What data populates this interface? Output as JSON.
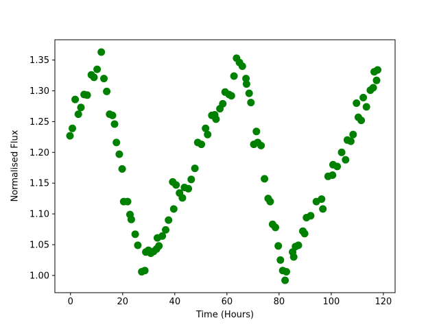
{
  "chart_data": {
    "type": "scatter",
    "title": "",
    "xlabel": "Time (Hours)",
    "ylabel": "Normalised Flux",
    "legend": null,
    "grid": false,
    "marker_color": "#008000",
    "axis_color": "#000000",
    "background_color": "#ffffff",
    "xlim": [
      -6.0,
      124.5
    ],
    "ylim": [
      0.972,
      1.383
    ],
    "x_ticks": [
      0,
      20,
      40,
      60,
      80,
      100,
      120
    ],
    "x_tick_labels": [
      "0",
      "20",
      "40",
      "60",
      "80",
      "100",
      "120"
    ],
    "y_ticks": [
      1.0,
      1.05,
      1.1,
      1.15,
      1.2,
      1.25,
      1.3,
      1.35
    ],
    "y_tick_labels": [
      "1.00",
      "1.05",
      "1.10",
      "1.15",
      "1.20",
      "1.25",
      "1.30",
      "1.35"
    ],
    "points": [
      [
        -0.2,
        1.227
      ],
      [
        0.7,
        1.239
      ],
      [
        1.8,
        1.286
      ],
      [
        3.0,
        1.262
      ],
      [
        4.0,
        1.273
      ],
      [
        5.2,
        1.294
      ],
      [
        6.4,
        1.293
      ],
      [
        8.0,
        1.326
      ],
      [
        9.0,
        1.322
      ],
      [
        10.2,
        1.335
      ],
      [
        11.8,
        1.363
      ],
      [
        12.8,
        1.32
      ],
      [
        13.9,
        1.299
      ],
      [
        15.0,
        1.262
      ],
      [
        16.1,
        1.26
      ],
      [
        16.9,
        1.246
      ],
      [
        17.6,
        1.216
      ],
      [
        18.7,
        1.197
      ],
      [
        19.8,
        1.173
      ],
      [
        20.4,
        1.12
      ],
      [
        21.9,
        1.12
      ],
      [
        22.8,
        1.099
      ],
      [
        23.3,
        1.091
      ],
      [
        24.8,
        1.067
      ],
      [
        25.8,
        1.049
      ],
      [
        27.3,
        1.006
      ],
      [
        28.5,
        1.008
      ],
      [
        28.9,
        1.038
      ],
      [
        29.9,
        1.041
      ],
      [
        30.8,
        1.036
      ],
      [
        31.9,
        1.039
      ],
      [
        33.0,
        1.043
      ],
      [
        33.9,
        1.048
      ],
      [
        33.3,
        1.061
      ],
      [
        35.2,
        1.064
      ],
      [
        36.5,
        1.074
      ],
      [
        37.6,
        1.09
      ],
      [
        39.6,
        1.108
      ],
      [
        39.2,
        1.152
      ],
      [
        40.5,
        1.147
      ],
      [
        41.8,
        1.134
      ],
      [
        42.9,
        1.126
      ],
      [
        43.7,
        1.143
      ],
      [
        45.2,
        1.141
      ],
      [
        46.3,
        1.156
      ],
      [
        47.7,
        1.174
      ],
      [
        48.8,
        1.216
      ],
      [
        50.2,
        1.213
      ],
      [
        51.8,
        1.239
      ],
      [
        52.6,
        1.229
      ],
      [
        54.2,
        1.26
      ],
      [
        55.3,
        1.261
      ],
      [
        55.8,
        1.254
      ],
      [
        57.3,
        1.271
      ],
      [
        58.4,
        1.279
      ],
      [
        59.3,
        1.298
      ],
      [
        60.8,
        1.294
      ],
      [
        61.7,
        1.292
      ],
      [
        62.7,
        1.324
      ],
      [
        63.7,
        1.353
      ],
      [
        64.8,
        1.346
      ],
      [
        65.9,
        1.34
      ],
      [
        67.3,
        1.32
      ],
      [
        67.5,
        1.311
      ],
      [
        68.5,
        1.296
      ],
      [
        69.2,
        1.281
      ],
      [
        70.3,
        1.213
      ],
      [
        71.3,
        1.234
      ],
      [
        71.8,
        1.216
      ],
      [
        73.1,
        1.211
      ],
      [
        74.4,
        1.157
      ],
      [
        75.8,
        1.125
      ],
      [
        76.6,
        1.12
      ],
      [
        77.5,
        1.083
      ],
      [
        78.6,
        1.078
      ],
      [
        79.7,
        1.048
      ],
      [
        80.5,
        1.025
      ],
      [
        81.4,
        1.008
      ],
      [
        82.3,
        0.992
      ],
      [
        82.8,
        1.006
      ],
      [
        85.2,
        1.038
      ],
      [
        85.6,
        1.03
      ],
      [
        86.3,
        1.047
      ],
      [
        87.4,
        1.049
      ],
      [
        89.1,
        1.072
      ],
      [
        89.8,
        1.068
      ],
      [
        90.5,
        1.094
      ],
      [
        92.1,
        1.097
      ],
      [
        94.3,
        1.12
      ],
      [
        96.3,
        1.124
      ],
      [
        96.8,
        1.108
      ],
      [
        98.8,
        1.161
      ],
      [
        100.5,
        1.163
      ],
      [
        100.7,
        1.18
      ],
      [
        102.3,
        1.177
      ],
      [
        104.0,
        1.2
      ],
      [
        105.5,
        1.188
      ],
      [
        106.2,
        1.22
      ],
      [
        107.5,
        1.218
      ],
      [
        108.4,
        1.229
      ],
      [
        109.7,
        1.28
      ],
      [
        110.4,
        1.257
      ],
      [
        111.5,
        1.252
      ],
      [
        112.3,
        1.289
      ],
      [
        113.5,
        1.274
      ],
      [
        115.0,
        1.301
      ],
      [
        116.1,
        1.305
      ],
      [
        116.5,
        1.331
      ],
      [
        117.8,
        1.334
      ],
      [
        117.4,
        1.317
      ]
    ]
  }
}
